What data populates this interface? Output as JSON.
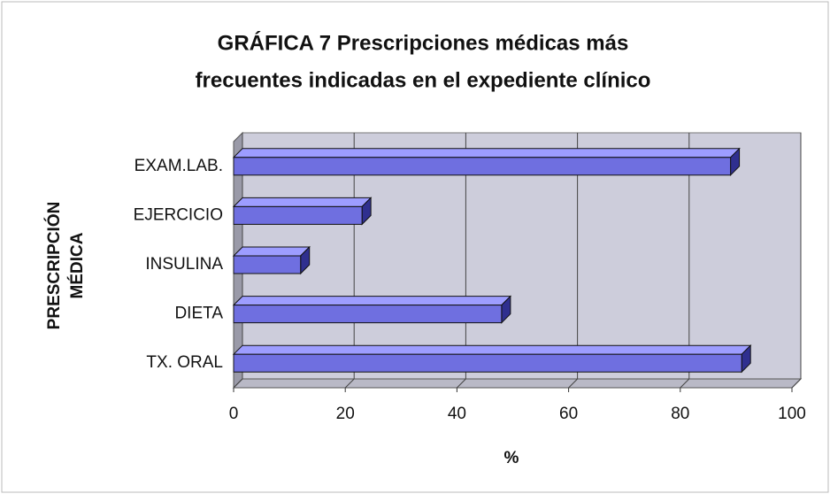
{
  "chart_data": {
    "type": "bar",
    "orientation": "horizontal",
    "title": [
      "GRÁFICA 7 Prescripciones médicas más",
      "frecuentes indicadas en el expediente clínico"
    ],
    "ylabel": [
      "PRESCRIPCIÓN",
      "MÉDICA"
    ],
    "xlabel": "%",
    "categories": [
      "EXAM.LAB.",
      "EJERCICIO",
      "INSULINA",
      "DIETA",
      "TX. ORAL"
    ],
    "values": [
      89,
      23,
      12,
      48,
      91
    ],
    "color": "#6f6fe0",
    "xlim": [
      0,
      100
    ],
    "xticks": [
      0,
      20,
      40,
      60,
      80,
      100
    ],
    "grid": true
  }
}
